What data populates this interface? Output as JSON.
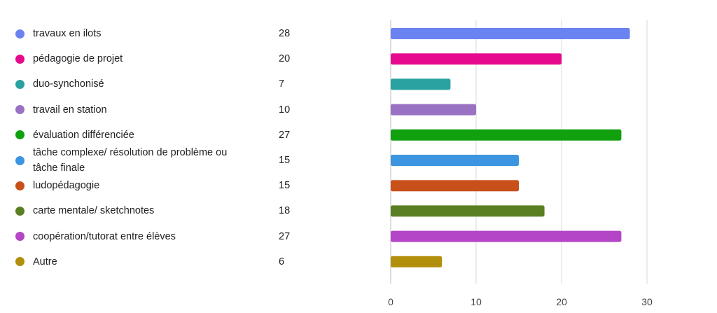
{
  "chart_data": {
    "type": "bar",
    "orientation": "horizontal",
    "categories": [
      "travaux en ilots",
      "pédagogie de projet",
      "duo-synchonisé",
      "travail en station",
      "évaluation différenciée",
      "tâche complexe/ résolution de problème ou tâche finale",
      "ludopédagogie",
      "carte mentale/ sketchnotes",
      "coopération/tutorat entre élèves",
      "Autre"
    ],
    "label_lines": [
      [
        "travaux en ilots"
      ],
      [
        "pédagogie de projet"
      ],
      [
        "duo-synchonisé"
      ],
      [
        "travail en station"
      ],
      [
        "évaluation différenciée"
      ],
      [
        "tâche complexe/ résolution de problème ou",
        "tâche finale"
      ],
      [
        "ludopédagogie"
      ],
      [
        "carte mentale/ sketchnotes"
      ],
      [
        "coopération/tutorat entre élèves"
      ],
      [
        "Autre"
      ]
    ],
    "values": [
      28,
      20,
      7,
      10,
      27,
      15,
      15,
      18,
      27,
      6
    ],
    "colors": [
      "#6a83f0",
      "#e6088d",
      "#2aa2a2",
      "#9a72c4",
      "#11a10f",
      "#3c95e0",
      "#c8501a",
      "#5a7f22",
      "#b445c6",
      "#b28f0a"
    ],
    "xlim": [
      0,
      30
    ],
    "xticks": [
      0,
      10,
      20,
      30
    ],
    "grid": true,
    "legend": "left",
    "title": "",
    "xlabel": "",
    "ylabel": ""
  }
}
